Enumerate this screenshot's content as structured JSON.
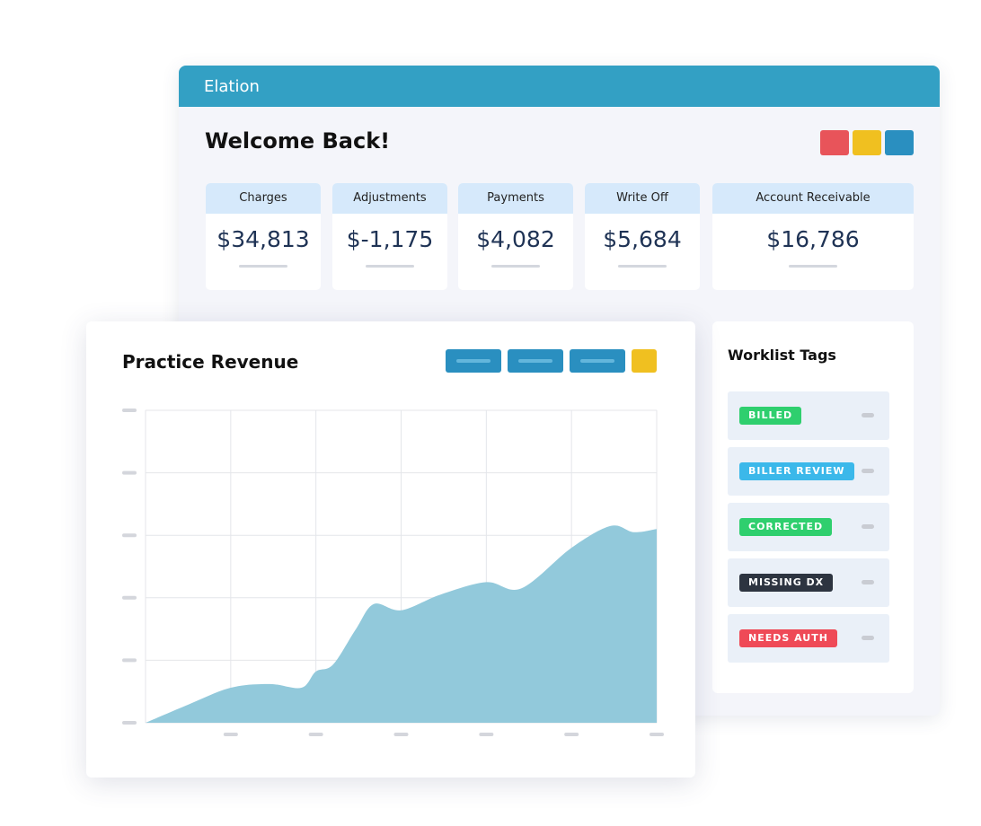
{
  "header": {
    "logo": "Elation"
  },
  "welcome": "Welcome Back!",
  "stats": [
    {
      "label": "Charges",
      "value": "$34,813"
    },
    {
      "label": "Adjustments",
      "value": "$-1,175"
    },
    {
      "label": "Payments",
      "value": "$4,082"
    },
    {
      "label": "Write Off",
      "value": "$5,684"
    },
    {
      "label": "Account Receivable",
      "value": "$16,786"
    }
  ],
  "worklist": {
    "title": "Worklist Tags",
    "tags": [
      {
        "label": "BILLED",
        "color": "#2fcf6e"
      },
      {
        "label": "BILLER REVIEW",
        "color": "#3bb8ea"
      },
      {
        "label": "CORRECTED",
        "color": "#2fcf6e"
      },
      {
        "label": "MISSING DX",
        "color": "#2d3440"
      },
      {
        "label": "NEEDS AUTH",
        "color": "#ef4a57"
      }
    ]
  },
  "chart_data": {
    "type": "area",
    "title": "Practice Revenue",
    "x": [
      0,
      0.5,
      1,
      1.46,
      1.83,
      2,
      2.2,
      2.47,
      2.68,
      3,
      3.46,
      4,
      4.41,
      5,
      5.46,
      5.73,
      6
    ],
    "values": [
      0,
      0.29,
      0.56,
      0.62,
      0.56,
      0.82,
      0.93,
      1.5,
      1.9,
      1.8,
      2.05,
      2.25,
      2.15,
      2.8,
      3.15,
      3.05,
      3.1
    ],
    "xlim": [
      0,
      6
    ],
    "ylim": [
      0,
      5
    ],
    "xticks": [
      0,
      1,
      2,
      3,
      4,
      5,
      6
    ],
    "yticks": [
      0,
      1,
      2,
      3,
      4,
      5
    ],
    "color": "#92c9db",
    "grid": true
  }
}
